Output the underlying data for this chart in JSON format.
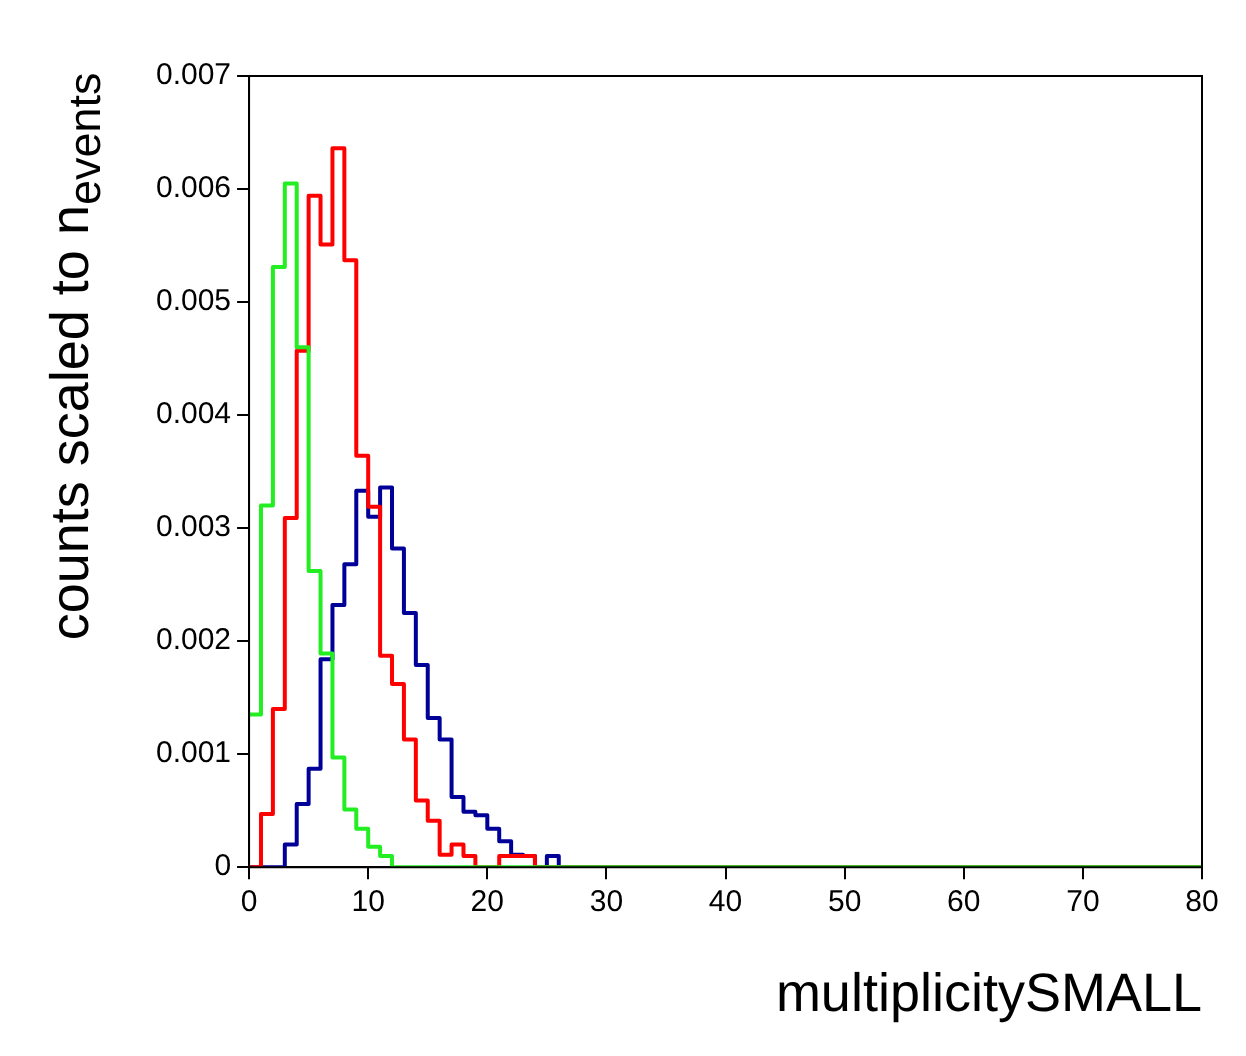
{
  "chart_data": {
    "type": "histogram",
    "xlabel": "multiplicitySMALL",
    "ylabel": "counts scaled to n$_{events}$",
    "bins": [
      0,
      1,
      2,
      3,
      4,
      5,
      6,
      7,
      8,
      9,
      10,
      11,
      12,
      13,
      14,
      15,
      16,
      17,
      18,
      19,
      20,
      21,
      22,
      23,
      24,
      25,
      26,
      27,
      28,
      29,
      30,
      31,
      32,
      33,
      34,
      35,
      36,
      37,
      38,
      39,
      40,
      41,
      42,
      43,
      44,
      45,
      46,
      47,
      48,
      49,
      50,
      51,
      52,
      53,
      54,
      55,
      56,
      57,
      58,
      59,
      60,
      61,
      62,
      63,
      64,
      65,
      66,
      67,
      68,
      69,
      70,
      71,
      72,
      73,
      74,
      75,
      76,
      77,
      78,
      79,
      80
    ],
    "series": [
      {
        "color": "#22ee22",
        "values": [
          0.00135,
          0.0032,
          0.00531,
          0.00605,
          0.0046,
          0.00262,
          0.00189,
          0.00097,
          0.00051,
          0.00034,
          0.00018,
          0.0001,
          0,
          0,
          0,
          0,
          0,
          0,
          0,
          0,
          0,
          0,
          0,
          0,
          0,
          0,
          0,
          0,
          0,
          0,
          0,
          0,
          0,
          0,
          0,
          0,
          0,
          0,
          0,
          0,
          0,
          0,
          0,
          0,
          0,
          0,
          0,
          0,
          0,
          0,
          0,
          0,
          0,
          0,
          0,
          0,
          0,
          0,
          0,
          0,
          0,
          0,
          0,
          0,
          0,
          0,
          0,
          0,
          0,
          0,
          0,
          0,
          0,
          0,
          0,
          0,
          0,
          0,
          0,
          0
        ]
      },
      {
        "color": "#ff0000",
        "values": [
          0,
          0.00047,
          0.0014,
          0.00309,
          0.00457,
          0.00594,
          0.00551,
          0.00636,
          0.00537,
          0.00364,
          0.00319,
          0.00187,
          0.00162,
          0.00113,
          0.00059,
          0.00041,
          0.00011,
          0.0002,
          0.0001,
          0,
          0,
          0.0001,
          0.0001,
          0.0001,
          0,
          0,
          0,
          0,
          0,
          0,
          0,
          0,
          0,
          0,
          0,
          0,
          0,
          0,
          0,
          0,
          0,
          0,
          0,
          0,
          0,
          0,
          0,
          0,
          0,
          0,
          0,
          0,
          0,
          0,
          0,
          0,
          0,
          0,
          0,
          0,
          0,
          0,
          0,
          0,
          0,
          0,
          0,
          0,
          0,
          0,
          0,
          0,
          0,
          0,
          0,
          0,
          0,
          0,
          0,
          0
        ]
      },
      {
        "color": "#000099",
        "values": [
          0,
          0,
          0,
          0.0002,
          0.00056,
          0.00087,
          0.00184,
          0.00232,
          0.00268,
          0.00333,
          0.0031,
          0.00336,
          0.00282,
          0.00225,
          0.00179,
          0.00132,
          0.00113,
          0.00062,
          0.00049,
          0.00046,
          0.00034,
          0.00023,
          0.00011,
          0.0001,
          0,
          0.0001,
          0,
          0,
          0,
          0,
          0,
          0,
          0,
          0,
          0,
          0,
          0,
          0,
          0,
          0,
          0,
          0,
          0,
          0,
          0,
          0,
          0,
          0,
          0,
          0,
          0,
          0,
          0,
          0,
          0,
          0,
          0,
          0,
          0,
          0,
          0,
          0,
          0,
          0,
          0,
          0,
          0,
          0,
          0,
          0,
          0,
          0,
          0,
          0,
          0,
          0,
          0,
          0,
          0,
          0
        ]
      }
    ],
    "xlim": [
      0,
      80
    ],
    "xticks": [
      0,
      10,
      20,
      30,
      40,
      50,
      60,
      70,
      80
    ],
    "ylim": [
      0,
      0.007
    ],
    "yticks": [
      0,
      0.001,
      0.002,
      0.003,
      0.004,
      0.005,
      0.006,
      0.007
    ]
  }
}
